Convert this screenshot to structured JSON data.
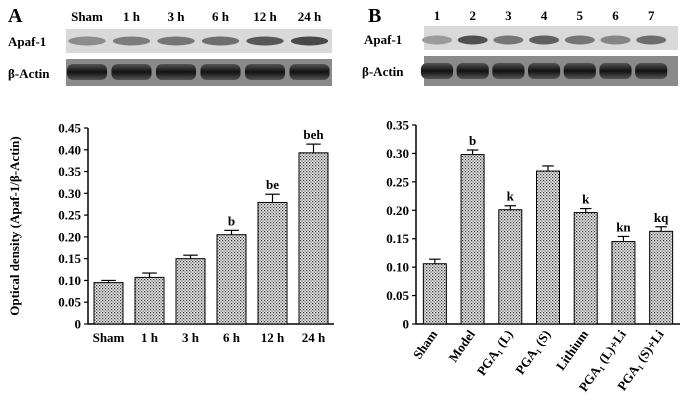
{
  "panel_a": {
    "letter": "A",
    "blot_lanes": [
      "Sham",
      "1 h",
      "3 h",
      "6 h",
      "12 h",
      "24 h"
    ],
    "blot_rows": [
      "Apaf-1",
      "β-Actin"
    ]
  },
  "panel_b": {
    "letter": "B",
    "blot_lanes": [
      "1",
      "2",
      "3",
      "4",
      "5",
      "6",
      "7"
    ],
    "blot_rows": [
      "Apaf-1",
      "β-Actin"
    ]
  },
  "chart_data": [
    {
      "type": "bar",
      "title": "",
      "ylabel": "Optical density (Apaf-1/β-Actin)",
      "xlabel": "",
      "ylim": [
        0,
        0.45
      ],
      "yticks": [
        "0",
        "0.05",
        "0.10",
        "0.15",
        "0.20",
        "0.25",
        "0.30",
        "0.35",
        "0.40",
        "0.45"
      ],
      "categories": [
        "Sham",
        "1 h",
        "3 h",
        "6 h",
        "12 h",
        "24 h"
      ],
      "values": [
        0.095,
        0.107,
        0.15,
        0.205,
        0.279,
        0.393
      ],
      "errors": [
        0.005,
        0.01,
        0.008,
        0.01,
        0.019,
        0.02
      ],
      "annotations": [
        "",
        "",
        "",
        "b",
        "be",
        "beh"
      ],
      "grid": false,
      "bar_pattern": "dotted-gray"
    },
    {
      "type": "bar",
      "title": "",
      "ylabel": "",
      "xlabel": "",
      "ylim": [
        0,
        0.35
      ],
      "yticks": [
        "0",
        "0.05",
        "0.10",
        "0.15",
        "0.20",
        "0.25",
        "0.30",
        "0.35"
      ],
      "categories": [
        "Sham",
        "Model",
        "PGA₁ (L)",
        "PGA₁ (S)",
        "Lithium",
        "PGA₁ (L)+Li",
        "PGA₁ (S)+Li"
      ],
      "values": [
        0.106,
        0.298,
        0.201,
        0.269,
        0.196,
        0.145,
        0.163
      ],
      "errors": [
        0.008,
        0.008,
        0.007,
        0.009,
        0.007,
        0.009,
        0.008
      ],
      "annotations": [
        "",
        "b",
        "k",
        "",
        "k",
        "kn",
        "kq"
      ],
      "grid": false,
      "bar_pattern": "dotted-gray"
    }
  ]
}
